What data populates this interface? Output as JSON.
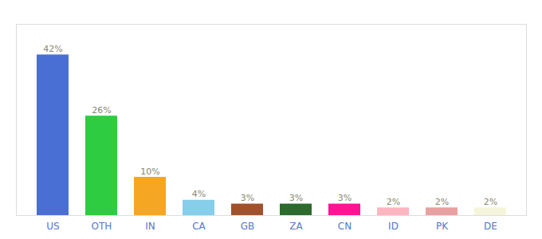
{
  "chart_data": {
    "type": "bar",
    "categories": [
      "US",
      "OTH",
      "IN",
      "CA",
      "GB",
      "ZA",
      "CN",
      "ID",
      "PK",
      "DE"
    ],
    "values": [
      42,
      26,
      10,
      4,
      3,
      3,
      3,
      2,
      2,
      2
    ],
    "value_labels": [
      "42%",
      "26%",
      "10%",
      "4%",
      "3%",
      "3%",
      "3%",
      "2%",
      "2%",
      "2%"
    ],
    "colors": [
      "#4a6fd4",
      "#2ecc40",
      "#f5a623",
      "#87ceeb",
      "#a0522d",
      "#2d6a2d",
      "#ff1493",
      "#ffb6c1",
      "#e8a0a0",
      "#f5f5dc"
    ],
    "ylim": [
      0,
      50
    ],
    "grid": false,
    "data_labels": true,
    "tick_labels": "x"
  }
}
